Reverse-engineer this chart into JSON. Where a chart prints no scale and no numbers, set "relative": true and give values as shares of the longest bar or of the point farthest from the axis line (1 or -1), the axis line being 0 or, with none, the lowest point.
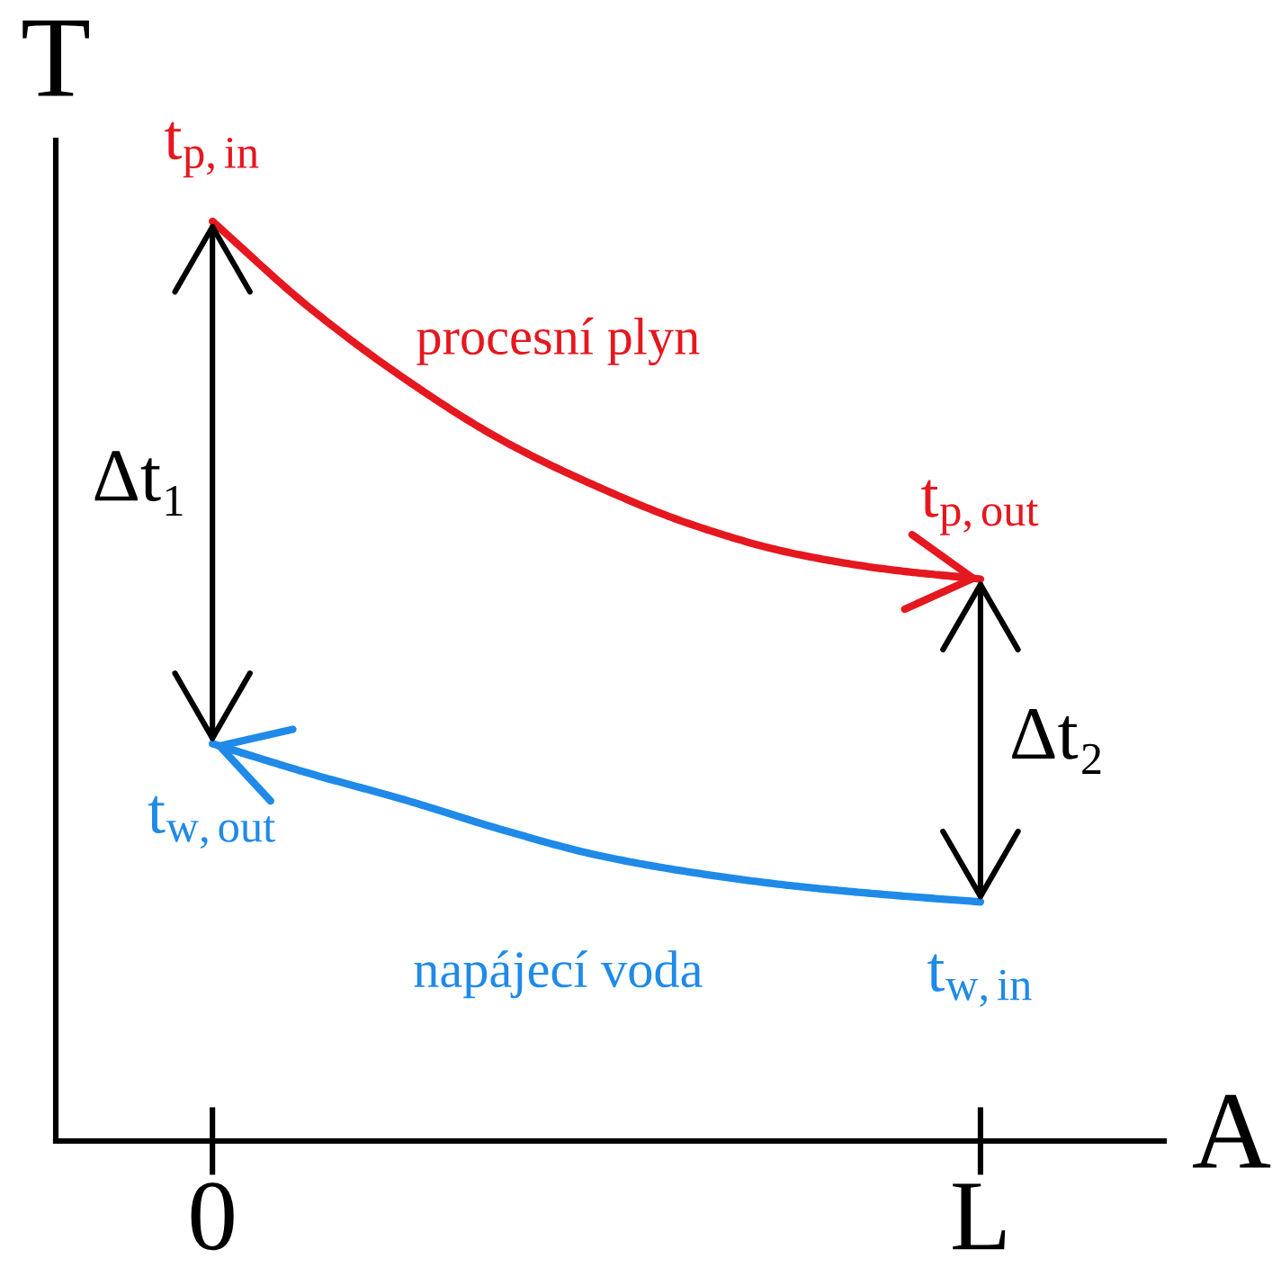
{
  "chart_data": {
    "type": "line",
    "xlabel": "A",
    "ylabel": "T",
    "relative": true,
    "categories": [
      "0",
      null,
      null,
      null,
      null,
      null,
      null,
      null,
      "L"
    ],
    "series": [
      {
        "name": "procesní plyn",
        "color": "#e5171f",
        "values": [
          1,
          0.907,
          0.829,
          0.763,
          0.712,
          0.67,
          0.64,
          0.622,
          0.611
        ]
      },
      {
        "name": "napájecí voda",
        "color": "#1f8ae8",
        "values": [
          0.432,
          0.4,
          0.371,
          0.339,
          0.311,
          0.292,
          0.278,
          0.268,
          0.26
        ]
      }
    ],
    "annotations": [
      {
        "text": "t$_{p,in}$",
        "x": "0",
        "y": 1
      },
      {
        "text": "t$_{p,out}$",
        "x": "L",
        "y": 0.611
      },
      {
        "text": "t$_{w,out}$",
        "x": "0",
        "y": 0.432
      },
      {
        "text": "t$_{w,in}$",
        "x": "L",
        "y": 0.26
      },
      "Δt₁",
      "Δt₂"
    ]
  }
}
